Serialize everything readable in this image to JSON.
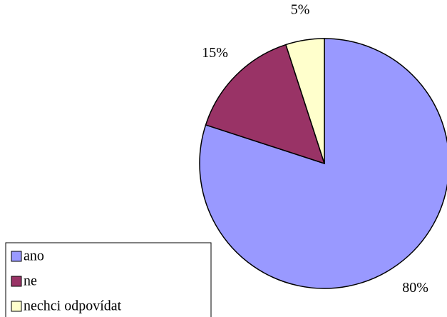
{
  "chart_data": {
    "type": "pie",
    "categories": [
      "ano",
      "ne",
      "nechci odpovídat"
    ],
    "values": [
      80,
      15,
      5
    ],
    "value_labels": [
      "80%",
      "15%",
      "5%"
    ],
    "colors": [
      "#9999ff",
      "#993366",
      "#ffffcc"
    ],
    "legend": "bottom-left"
  }
}
